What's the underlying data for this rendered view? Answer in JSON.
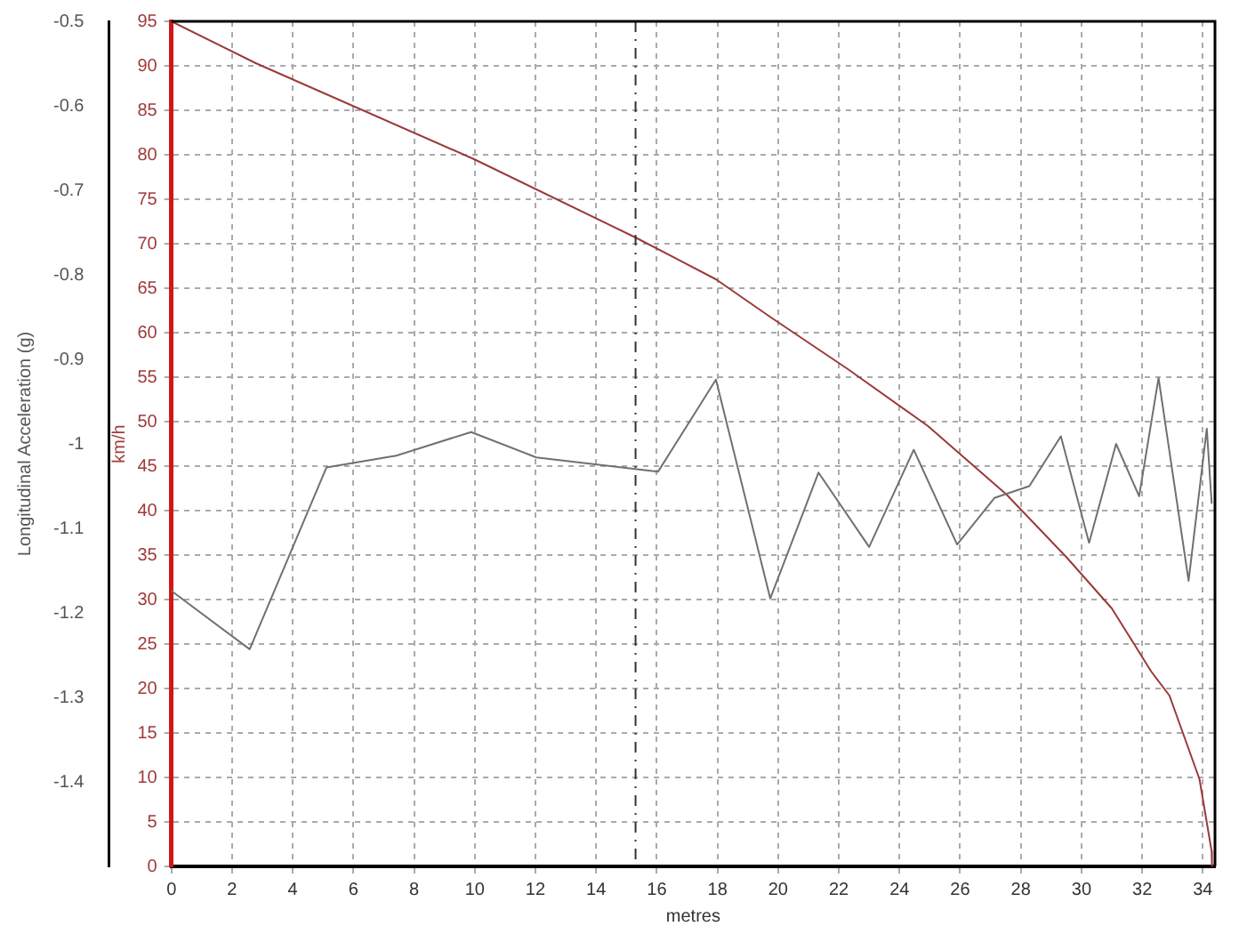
{
  "chart_data": {
    "type": "line",
    "xlabel": "metres",
    "ylabel": "Longitudinal Acceleration (g)",
    "y2label": "km/h",
    "xlim": [
      0,
      34.4
    ],
    "xticks": [
      0,
      2,
      4,
      6,
      8,
      10,
      12,
      14,
      16,
      18,
      20,
      22,
      24,
      26,
      28,
      30,
      32,
      34
    ],
    "ylim": [
      -1.5,
      -0.5
    ],
    "yticks": [
      -0.5,
      -0.6,
      -0.7,
      -0.8,
      -0.9,
      -1,
      -1.1,
      -1.2,
      -1.3,
      -1.4
    ],
    "y2lim": [
      0,
      95
    ],
    "y2ticks": [
      0,
      5,
      10,
      15,
      20,
      25,
      30,
      35,
      40,
      45,
      50,
      55,
      60,
      65,
      70,
      75,
      80,
      85,
      90,
      95
    ],
    "grid": true,
    "legend": false,
    "marker": "none",
    "line_style": "solid",
    "ref_lines": [
      {
        "axis": "x",
        "value": 15.3,
        "color": "#333333",
        "line_style": "dashed"
      }
    ],
    "series": [
      {
        "color": "#707070",
        "x": [
          0,
          2.58,
          5.11,
          7.41,
          9.88,
          12.03,
          16.04,
          17.95,
          19.74,
          21.33,
          23.0,
          24.47,
          25.9,
          27.13,
          28.28,
          29.32,
          30.25,
          31.14,
          31.9,
          32.54,
          33.53,
          34.13,
          34.29
        ],
        "values": [
          -1.174,
          -1.243,
          -1.028,
          -1.014,
          -0.986,
          -1.016,
          -1.033,
          -0.924,
          -1.183,
          -1.034,
          -1.122,
          -1.007,
          -1.119,
          -1.064,
          -1.05,
          -0.991,
          -1.117,
          -1.0,
          -1.062,
          -0.922,
          -1.162,
          -0.982,
          -1.07
        ]
      },
      {
        "color": "#9b3a3a",
        "axis": "y2",
        "x": [
          0,
          2.78,
          9.98,
          15.3,
          17.95,
          19.77,
          22.3,
          24.94,
          27.53,
          29.52,
          31.0,
          32.3,
          32.9,
          33.89,
          34.29,
          34.3
        ],
        "values": [
          95,
          90.3,
          79.5,
          70.7,
          66.0,
          61.7,
          55.9,
          49.5,
          41.8,
          34.7,
          29.0,
          21.9,
          19.2,
          9.8,
          1.7,
          0
        ]
      }
    ]
  }
}
